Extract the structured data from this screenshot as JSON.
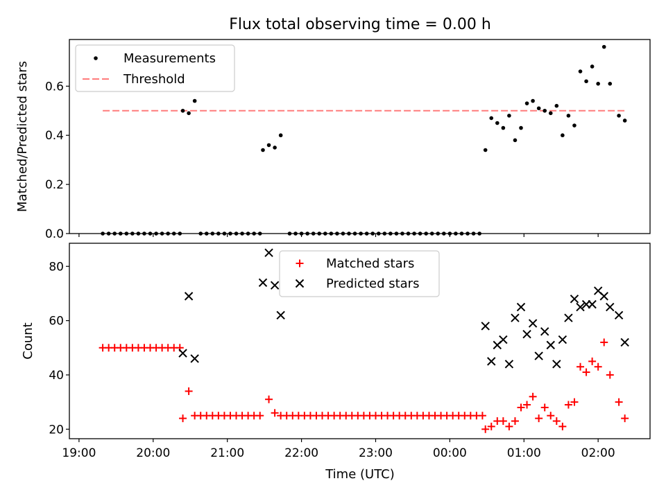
{
  "title": "Flux total observing time = 0.00 h",
  "x_axis": {
    "label": "Time (UTC)",
    "ticks": [
      "19:00",
      "20:00",
      "21:00",
      "22:00",
      "23:00",
      "00:00",
      "01:00",
      "02:00"
    ]
  },
  "colors": {
    "measurements": "#000000",
    "threshold": "#ff7b7b",
    "matched": "#ff0000",
    "predicted": "#000000"
  },
  "chart_data": [
    {
      "type": "scatter",
      "ylabel": "Matched/Predicted stars",
      "xlabel": "",
      "x_unit": "hours since 19:00 UTC",
      "xlim": [
        -0.13,
        7.7
      ],
      "ylim": [
        0,
        0.79
      ],
      "yticks": [
        "0.0",
        "0.2",
        "0.4",
        "0.6"
      ],
      "grid": false,
      "legend_position": "upper-left",
      "threshold": {
        "name": "Threshold",
        "value": 0.5,
        "x_range": [
          0.32,
          7.38
        ],
        "style": "dashed"
      },
      "series": [
        {
          "name": "Measurements",
          "marker": "dot",
          "points": [
            [
              0.32,
              0
            ],
            [
              0.4,
              0
            ],
            [
              0.48,
              0
            ],
            [
              0.56,
              0
            ],
            [
              0.64,
              0
            ],
            [
              0.72,
              0
            ],
            [
              0.8,
              0
            ],
            [
              0.88,
              0
            ],
            [
              0.96,
              0
            ],
            [
              1.04,
              0
            ],
            [
              1.12,
              0
            ],
            [
              1.2,
              0
            ],
            [
              1.28,
              0
            ],
            [
              1.36,
              0
            ],
            [
              1.4,
              0.5
            ],
            [
              1.48,
              0.49
            ],
            [
              1.56,
              0.54
            ],
            [
              1.64,
              0
            ],
            [
              1.72,
              0
            ],
            [
              1.8,
              0
            ],
            [
              1.88,
              0
            ],
            [
              1.96,
              0
            ],
            [
              2.04,
              0
            ],
            [
              2.12,
              0
            ],
            [
              2.2,
              0
            ],
            [
              2.28,
              0
            ],
            [
              2.36,
              0
            ],
            [
              2.44,
              0
            ],
            [
              2.48,
              0.34
            ],
            [
              2.56,
              0.36
            ],
            [
              2.64,
              0.35
            ],
            [
              2.72,
              0.4
            ],
            [
              2.84,
              0
            ],
            [
              2.92,
              0
            ],
            [
              3.0,
              0
            ],
            [
              3.08,
              0
            ],
            [
              3.16,
              0
            ],
            [
              3.24,
              0
            ],
            [
              3.32,
              0
            ],
            [
              3.4,
              0
            ],
            [
              3.48,
              0
            ],
            [
              3.56,
              0
            ],
            [
              3.64,
              0
            ],
            [
              3.72,
              0
            ],
            [
              3.8,
              0
            ],
            [
              3.88,
              0
            ],
            [
              3.96,
              0
            ],
            [
              4.04,
              0
            ],
            [
              4.12,
              0
            ],
            [
              4.2,
              0
            ],
            [
              4.28,
              0
            ],
            [
              4.36,
              0
            ],
            [
              4.44,
              0
            ],
            [
              4.52,
              0
            ],
            [
              4.6,
              0
            ],
            [
              4.68,
              0
            ],
            [
              4.76,
              0
            ],
            [
              4.84,
              0
            ],
            [
              4.92,
              0
            ],
            [
              5.0,
              0
            ],
            [
              5.08,
              0
            ],
            [
              5.16,
              0
            ],
            [
              5.24,
              0
            ],
            [
              5.32,
              0
            ],
            [
              5.4,
              0
            ],
            [
              5.48,
              0.34
            ],
            [
              5.56,
              0.47
            ],
            [
              5.64,
              0.45
            ],
            [
              5.72,
              0.43
            ],
            [
              5.8,
              0.48
            ],
            [
              5.88,
              0.38
            ],
            [
              5.96,
              0.43
            ],
            [
              6.04,
              0.53
            ],
            [
              6.12,
              0.54
            ],
            [
              6.2,
              0.51
            ],
            [
              6.28,
              0.5
            ],
            [
              6.36,
              0.49
            ],
            [
              6.44,
              0.52
            ],
            [
              6.52,
              0.4
            ],
            [
              6.6,
              0.48
            ],
            [
              6.68,
              0.44
            ],
            [
              6.76,
              0.66
            ],
            [
              6.84,
              0.62
            ],
            [
              6.92,
              0.68
            ],
            [
              7.0,
              0.61
            ],
            [
              7.08,
              0.76
            ],
            [
              7.16,
              0.61
            ],
            [
              7.28,
              0.48
            ],
            [
              7.36,
              0.46
            ]
          ]
        }
      ]
    },
    {
      "type": "scatter",
      "ylabel": "Count",
      "xlabel": "Time (UTC)",
      "x_unit": "hours since 19:00 UTC",
      "xlim": [
        -0.13,
        7.7
      ],
      "ylim": [
        16.5,
        88.5
      ],
      "yticks": [
        "20",
        "40",
        "60",
        "80"
      ],
      "grid": false,
      "legend_position": "upper-center",
      "series": [
        {
          "name": "Matched stars",
          "marker": "plus",
          "points": [
            [
              0.32,
              50
            ],
            [
              0.4,
              50
            ],
            [
              0.48,
              50
            ],
            [
              0.56,
              50
            ],
            [
              0.64,
              50
            ],
            [
              0.72,
              50
            ],
            [
              0.8,
              50
            ],
            [
              0.88,
              50
            ],
            [
              0.96,
              50
            ],
            [
              1.04,
              50
            ],
            [
              1.12,
              50
            ],
            [
              1.2,
              50
            ],
            [
              1.28,
              50
            ],
            [
              1.36,
              50
            ],
            [
              1.4,
              24
            ],
            [
              1.48,
              34
            ],
            [
              1.56,
              25
            ],
            [
              1.64,
              25
            ],
            [
              1.72,
              25
            ],
            [
              1.8,
              25
            ],
            [
              1.88,
              25
            ],
            [
              1.96,
              25
            ],
            [
              2.04,
              25
            ],
            [
              2.12,
              25
            ],
            [
              2.2,
              25
            ],
            [
              2.28,
              25
            ],
            [
              2.36,
              25
            ],
            [
              2.44,
              25
            ],
            [
              2.56,
              31
            ],
            [
              2.64,
              26
            ],
            [
              2.72,
              25
            ],
            [
              2.8,
              25
            ],
            [
              2.88,
              25
            ],
            [
              2.96,
              25
            ],
            [
              3.04,
              25
            ],
            [
              3.12,
              25
            ],
            [
              3.2,
              25
            ],
            [
              3.28,
              25
            ],
            [
              3.36,
              25
            ],
            [
              3.44,
              25
            ],
            [
              3.52,
              25
            ],
            [
              3.6,
              25
            ],
            [
              3.68,
              25
            ],
            [
              3.76,
              25
            ],
            [
              3.84,
              25
            ],
            [
              3.92,
              25
            ],
            [
              4.0,
              25
            ],
            [
              4.08,
              25
            ],
            [
              4.16,
              25
            ],
            [
              4.24,
              25
            ],
            [
              4.32,
              25
            ],
            [
              4.4,
              25
            ],
            [
              4.48,
              25
            ],
            [
              4.56,
              25
            ],
            [
              4.64,
              25
            ],
            [
              4.72,
              25
            ],
            [
              4.8,
              25
            ],
            [
              4.88,
              25
            ],
            [
              4.96,
              25
            ],
            [
              5.04,
              25
            ],
            [
              5.12,
              25
            ],
            [
              5.2,
              25
            ],
            [
              5.28,
              25
            ],
            [
              5.36,
              25
            ],
            [
              5.44,
              25
            ],
            [
              5.48,
              20
            ],
            [
              5.56,
              21
            ],
            [
              5.64,
              23
            ],
            [
              5.72,
              23
            ],
            [
              5.8,
              21
            ],
            [
              5.88,
              23
            ],
            [
              5.96,
              28
            ],
            [
              6.04,
              29
            ],
            [
              6.12,
              32
            ],
            [
              6.2,
              24
            ],
            [
              6.28,
              28
            ],
            [
              6.36,
              25
            ],
            [
              6.44,
              23
            ],
            [
              6.52,
              21
            ],
            [
              6.6,
              29
            ],
            [
              6.68,
              30
            ],
            [
              6.76,
              43
            ],
            [
              6.84,
              41
            ],
            [
              6.92,
              45
            ],
            [
              7.0,
              43
            ],
            [
              7.08,
              52
            ],
            [
              7.16,
              40
            ],
            [
              7.28,
              30
            ],
            [
              7.36,
              24
            ]
          ]
        },
        {
          "name": "Predicted stars",
          "marker": "x",
          "points": [
            [
              1.4,
              48
            ],
            [
              1.48,
              69
            ],
            [
              1.56,
              46
            ],
            [
              2.48,
              74
            ],
            [
              2.56,
              85
            ],
            [
              2.64,
              73
            ],
            [
              2.72,
              62
            ],
            [
              5.48,
              58
            ],
            [
              5.56,
              45
            ],
            [
              5.64,
              51
            ],
            [
              5.72,
              53
            ],
            [
              5.8,
              44
            ],
            [
              5.88,
              61
            ],
            [
              5.96,
              65
            ],
            [
              6.04,
              55
            ],
            [
              6.12,
              59
            ],
            [
              6.2,
              47
            ],
            [
              6.28,
              56
            ],
            [
              6.36,
              51
            ],
            [
              6.44,
              44
            ],
            [
              6.52,
              53
            ],
            [
              6.6,
              61
            ],
            [
              6.68,
              68
            ],
            [
              6.76,
              65
            ],
            [
              6.84,
              66
            ],
            [
              6.92,
              66
            ],
            [
              7.0,
              71
            ],
            [
              7.08,
              69
            ],
            [
              7.16,
              65
            ],
            [
              7.28,
              62
            ],
            [
              7.36,
              52
            ]
          ]
        }
      ]
    }
  ]
}
